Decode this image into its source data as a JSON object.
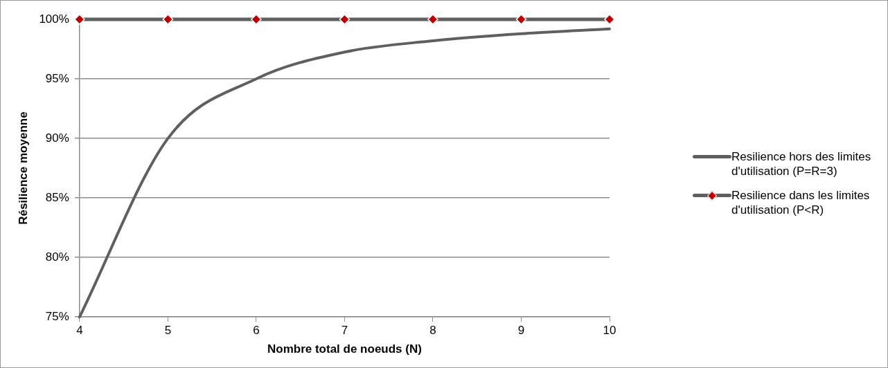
{
  "chart_data": {
    "type": "line",
    "xlabel": "Nombre total de noeuds (N)",
    "ylabel": "Résilience moyenne",
    "x": [
      4,
      5,
      6,
      7,
      8,
      9,
      10
    ],
    "series": [
      {
        "name": "Resilience hors des limites d'utilisation (P=R=3)",
        "color": "#5f5f5f",
        "values": [
          75,
          90,
          95,
          97.25,
          98.2,
          98.8,
          99.2
        ],
        "marker": "none"
      },
      {
        "name": "Resilience dans les limites d'utilisation (P<R)",
        "color": "#5f5f5f",
        "values": [
          100,
          100,
          100,
          100,
          100,
          100,
          100
        ],
        "marker": "diamond",
        "colors": [
          "#c00000",
          "#c00000",
          "#c00000",
          "#c00000",
          "#c00000",
          "#c00000",
          "#c00000"
        ]
      }
    ],
    "xlim": [
      4,
      10
    ],
    "xticks": [
      4,
      5,
      6,
      7,
      8,
      9,
      10
    ],
    "ylim": [
      75,
      100
    ],
    "yticks": [
      {
        "value": 75,
        "label": "75%"
      },
      {
        "value": 80,
        "label": "80%"
      },
      {
        "value": 85,
        "label": "85%"
      },
      {
        "value": 90,
        "label": "90%"
      },
      {
        "value": 95,
        "label": "95%"
      },
      {
        "value": 100,
        "label": "100%"
      }
    ],
    "grid": "y",
    "legend": "right",
    "line_style": "solid"
  }
}
